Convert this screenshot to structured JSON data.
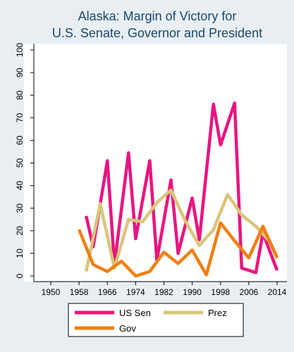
{
  "chart_data": {
    "type": "line",
    "title_lines": [
      "Alaska: Margin of Victory for",
      "U.S. Senate, Governor and President"
    ],
    "xlabel": "",
    "ylabel": "",
    "xlim": [
      1946,
      2016
    ],
    "ylim": [
      -1,
      105
    ],
    "xticks": [
      1950,
      1958,
      1966,
      1974,
      1982,
      1990,
      1998,
      2006,
      2014
    ],
    "yticks": [
      0,
      10,
      20,
      30,
      40,
      50,
      60,
      70,
      80,
      90,
      100
    ],
    "grid": false,
    "legend_position": "bottom",
    "series": [
      {
        "name": "US Sen",
        "color": "#e8157f",
        "x": [
          1960,
          1962,
          1966,
          1968,
          1972,
          1974,
          1978,
          1980,
          1984,
          1986,
          1990,
          1992,
          1996,
          1998,
          2002,
          2004,
          2008,
          2010,
          2014
        ],
        "y": [
          26.5,
          13,
          51,
          5,
          54.5,
          16.5,
          51,
          7,
          42.5,
          10,
          34.5,
          16,
          76,
          58,
          76.5,
          3.5,
          1.5,
          19,
          2.5
        ]
      },
      {
        "name": "Prez",
        "color": "#d9c57a",
        "x": [
          1960,
          1964,
          1968,
          1972,
          1976,
          1980,
          1984,
          1988,
          1992,
          1996,
          2000,
          2004,
          2008,
          2012,
          2014
        ],
        "y": [
          2,
          32,
          3.5,
          25,
          24,
          32.5,
          38,
          24.5,
          13.5,
          20.5,
          36,
          27,
          22,
          15,
          8.5
        ]
      },
      {
        "name": "Gov",
        "color": "#f07f12",
        "x": [
          1958,
          1962,
          1966,
          1970,
          1974,
          1978,
          1982,
          1986,
          1990,
          1994,
          1998,
          2002,
          2006,
          2010,
          2014
        ],
        "y": [
          20.5,
          5,
          2,
          6.5,
          0,
          2,
          10.5,
          5.5,
          11.5,
          0.5,
          23.5,
          15.5,
          8,
          22,
          8
        ]
      }
    ]
  }
}
